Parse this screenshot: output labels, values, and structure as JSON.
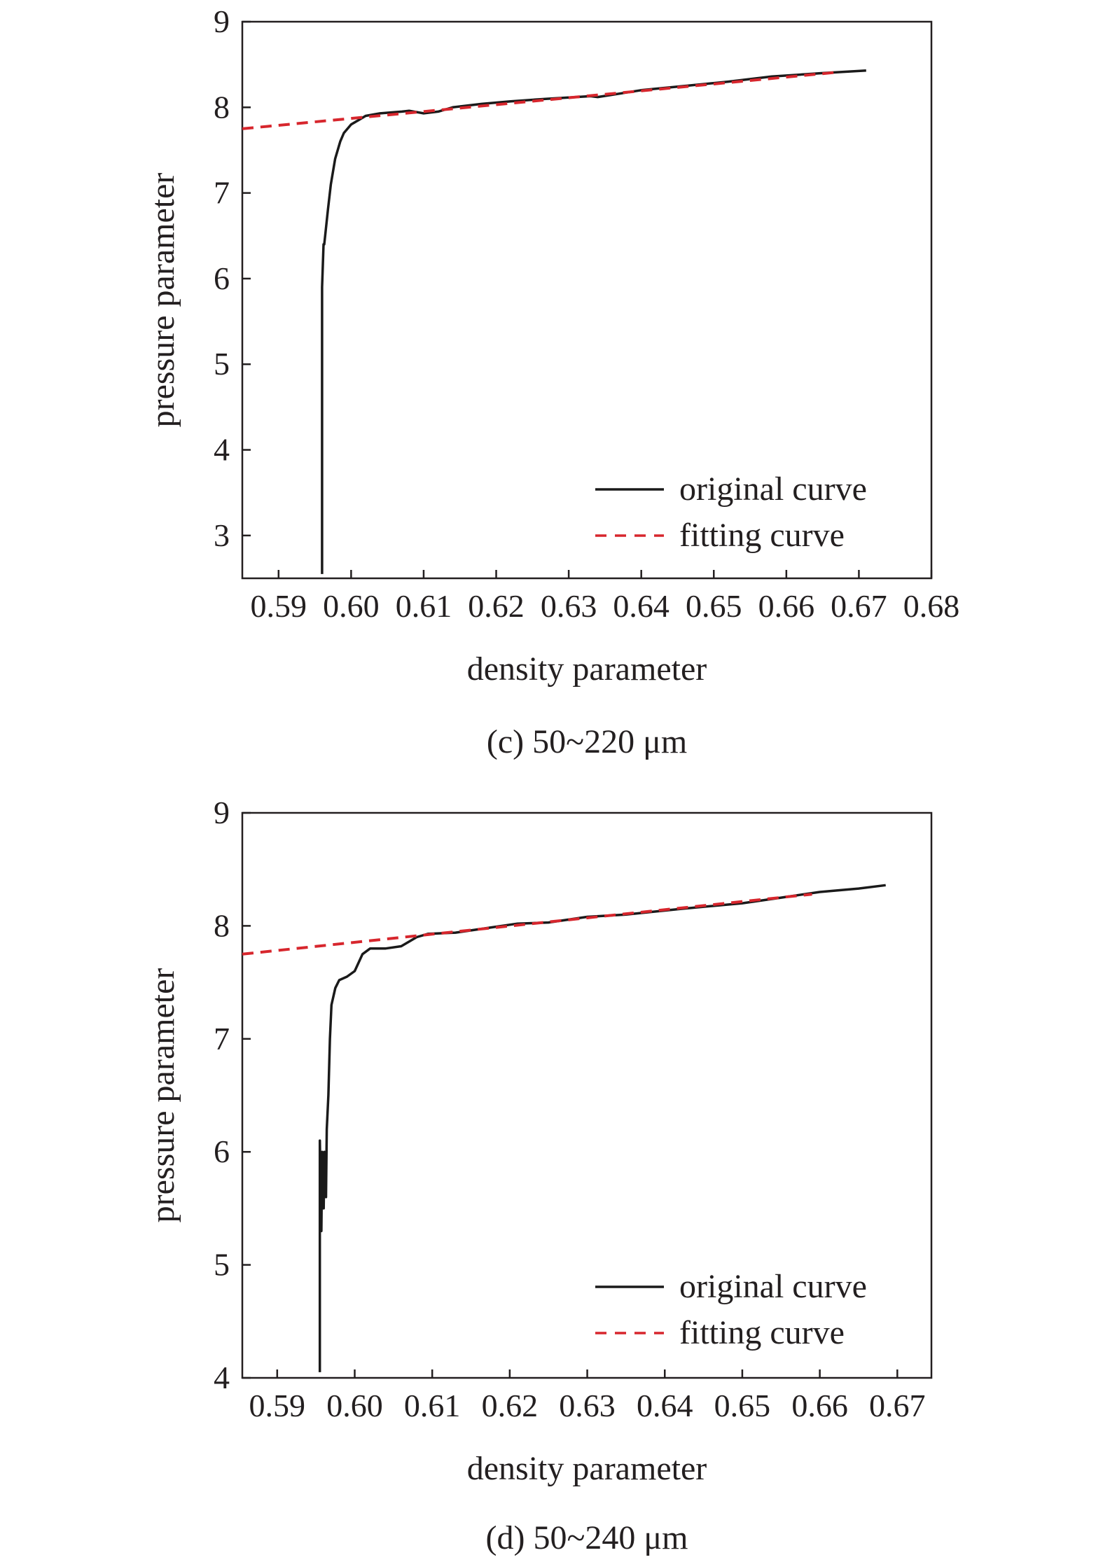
{
  "chart_data": [
    {
      "type": "line",
      "caption": "(c) 50~220 μm",
      "xlabel": "density parameter",
      "ylabel": "pressure parameter",
      "xlim": [
        0.585,
        0.68
      ],
      "ylim": [
        2.5,
        9
      ],
      "xticks": [
        "0.59",
        "0.60",
        "0.61",
        "0.62",
        "0.63",
        "0.64",
        "0.65",
        "0.66",
        "0.67",
        "0.68"
      ],
      "yticks": [
        "3",
        "4",
        "5",
        "6",
        "7",
        "8",
        "9"
      ],
      "grid": false,
      "legend_position": "bottom-right",
      "series": [
        {
          "name": "original curve",
          "color": "#1a1a1a",
          "style": "solid",
          "x": [
            0.596,
            0.596,
            0.5962,
            0.5963,
            0.5968,
            0.5972,
            0.5978,
            0.5985,
            0.599,
            0.6,
            0.601,
            0.602,
            0.604,
            0.607,
            0.608,
            0.61,
            0.612,
            0.614,
            0.618,
            0.622,
            0.627,
            0.633,
            0.634,
            0.64,
            0.646,
            0.652,
            0.658,
            0.665,
            0.671
          ],
          "y": [
            2.55,
            5.9,
            6.4,
            6.4,
            6.8,
            7.1,
            7.4,
            7.6,
            7.7,
            7.8,
            7.85,
            7.9,
            7.93,
            7.95,
            7.96,
            7.93,
            7.95,
            8.0,
            8.04,
            8.07,
            8.1,
            8.13,
            8.12,
            8.2,
            8.25,
            8.3,
            8.36,
            8.4,
            8.43
          ]
        },
        {
          "name": "fitting curve",
          "color": "#d7262d",
          "style": "dashed",
          "x": [
            0.585,
            0.667
          ],
          "y": [
            7.75,
            8.41
          ]
        }
      ]
    },
    {
      "type": "line",
      "caption": "(d) 50~240 μm",
      "xlabel": "density parameter",
      "ylabel": "pressure parameter",
      "xlim": [
        0.5855,
        0.6744
      ],
      "ylim": [
        4,
        9
      ],
      "xticks": [
        "0.59",
        "0.60",
        "0.61",
        "0.62",
        "0.63",
        "0.64",
        "0.65",
        "0.66",
        "0.67"
      ],
      "yticks": [
        "4",
        "5",
        "6",
        "7",
        "8",
        "9"
      ],
      "grid": false,
      "legend_position": "bottom-right",
      "series": [
        {
          "name": "original curve",
          "color": "#1a1a1a",
          "style": "solid",
          "x": [
            0.5955,
            0.5955,
            0.5957,
            0.5958,
            0.596,
            0.5961,
            0.5963,
            0.5964,
            0.5966,
            0.5968,
            0.597,
            0.5975,
            0.598,
            0.599,
            0.6,
            0.601,
            0.602,
            0.604,
            0.606,
            0.607,
            0.608,
            0.6095,
            0.613,
            0.617,
            0.621,
            0.625,
            0.63,
            0.635,
            0.642,
            0.65,
            0.655,
            0.66,
            0.665,
            0.6685
          ],
          "y": [
            4.05,
            6.1,
            5.3,
            6.0,
            5.5,
            6.0,
            5.6,
            6.2,
            6.5,
            7.0,
            7.3,
            7.45,
            7.52,
            7.55,
            7.6,
            7.75,
            7.8,
            7.8,
            7.82,
            7.86,
            7.9,
            7.93,
            7.94,
            7.98,
            8.02,
            8.03,
            8.08,
            8.1,
            8.15,
            8.2,
            8.25,
            8.3,
            8.33,
            8.36
          ]
        },
        {
          "name": "fitting curve",
          "color": "#d7262d",
          "style": "dashed",
          "x": [
            0.5855,
            0.659
          ],
          "y": [
            7.75,
            8.28
          ]
        }
      ]
    }
  ]
}
